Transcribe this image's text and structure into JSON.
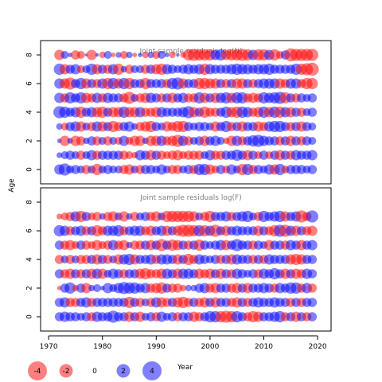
{
  "chart_data": [
    {
      "type": "bubble",
      "title": "Joint sample residuals log(N)",
      "ylabel": "Age",
      "xlim": [
        1968.5,
        2022.5
      ],
      "ylim": [
        -1,
        9
      ],
      "x": [
        1972,
        1973,
        1974,
        1975,
        1976,
        1977,
        1978,
        1979,
        1980,
        1981,
        1982,
        1983,
        1984,
        1985,
        1986,
        1987,
        1988,
        1989,
        1990,
        1991,
        1992,
        1993,
        1994,
        1995,
        1996,
        1997,
        1998,
        1999,
        2000,
        2001,
        2002,
        2003,
        2004,
        2005,
        2006,
        2007,
        2008,
        2009,
        2010,
        2011,
        2012,
        2013,
        2014,
        2015,
        2016,
        2017,
        2018,
        2019
      ],
      "y_ticks": [
        0,
        2,
        4,
        6,
        8
      ],
      "residuals_by_age": {
        "8": [
          -2.5,
          1.5,
          0.5,
          -2,
          -1.5,
          0.2,
          -2.5,
          0.3,
          -1,
          1.5,
          -0.5,
          0.8,
          -1.5,
          1,
          -0.5,
          0.5,
          -1,
          1,
          -1.5,
          1.5,
          0.5,
          -1,
          0.3,
          -0.8,
          -3,
          -3.5,
          -3,
          -3,
          -3,
          2.5,
          3,
          -2.5,
          -3,
          -3,
          -3.5,
          -3,
          2.5,
          -3,
          -3,
          2.5,
          -3,
          -1.5,
          2,
          -4,
          -3.5,
          -3.5,
          -3.5,
          -3.5
        ],
        "7": [
          3,
          -2.5,
          2,
          2.5,
          -1.5,
          1.5,
          3,
          -2.5,
          2,
          -2,
          2.5,
          -3,
          1,
          -2,
          1.5,
          1.5,
          -2,
          2,
          -2.5,
          -3,
          2.5,
          2,
          1.5,
          2,
          2.5,
          2,
          2.5,
          -3,
          2.5,
          2,
          2,
          2,
          2.5,
          3,
          2.5,
          2.5,
          2,
          2.5,
          2.5,
          3,
          2,
          2,
          2,
          2,
          3,
          -3,
          -3.5,
          -4
        ],
        "6": [
          2.5,
          -2.5,
          -3.5,
          2,
          3,
          -2.5,
          2,
          -2,
          2.5,
          -3,
          3,
          -2.5,
          3,
          -3,
          2,
          2,
          -3,
          2,
          2,
          2,
          -2,
          3,
          3.5,
          -2.5,
          2,
          2,
          -3,
          -3,
          -2.5,
          -2.5,
          2,
          -2,
          2,
          -2.5,
          -2.5,
          2,
          -2,
          2,
          2.5,
          2.5,
          2.5,
          -2.5,
          -2,
          2.5,
          2.5,
          -2,
          -3,
          -3
        ],
        "5": [
          2.5,
          -2,
          3,
          2,
          3,
          -2.5,
          -2,
          2.5,
          -2,
          2.5,
          2,
          2,
          -2,
          -3.5,
          1.5,
          -2,
          -2.5,
          2.5,
          2,
          -2,
          2,
          -2.5,
          2,
          2.5,
          -2,
          -2,
          3,
          -2.5,
          2,
          -2.5,
          2.5,
          3,
          -2.5,
          3,
          3,
          -2,
          -2.5,
          -2,
          3,
          2.5,
          3,
          3.5,
          -3,
          2,
          -2,
          2,
          1.5,
          2
        ],
        "4": [
          3.5,
          3,
          2,
          2.5,
          -3,
          2,
          2.5,
          -2.5,
          -3,
          2,
          -2.5,
          -2.5,
          3,
          -2.5,
          -2.5,
          2.5,
          -2,
          -2,
          -2.5,
          2.5,
          2,
          2,
          2,
          2.5,
          3.5,
          -2.5,
          2,
          -3,
          -2,
          -2,
          2,
          3,
          -2.5,
          -3,
          3,
          2.5,
          -2,
          -2.5,
          3,
          -2.5,
          3,
          -3,
          2.5,
          -2.5,
          2,
          -2,
          1.5,
          2
        ],
        "3": [
          1,
          -1.5,
          2,
          2.5,
          -2.5,
          1.5,
          -2,
          2.5,
          -2.5,
          2,
          -3,
          -2,
          2,
          2.5,
          1,
          -2,
          -2.5,
          -3,
          2,
          1.5,
          -2.5,
          -2,
          -3,
          -3,
          2,
          1.5,
          2,
          2,
          1.5,
          -2.5,
          2,
          3,
          -2,
          2,
          -2.5,
          2,
          2,
          -2.5,
          -2,
          2.5,
          3,
          3,
          2,
          -2,
          2,
          -2.5,
          2,
          1.5
        ],
        "2": [
          0.5,
          -2.5,
          0.8,
          -2.5,
          -2,
          1,
          2,
          -2,
          1.5,
          -2,
          1.5,
          -1.5,
          2.5,
          -1.5,
          -2.5,
          -2.5,
          1,
          -2.5,
          -2.5,
          2.5,
          -2,
          -2.5,
          -3.5,
          2.5,
          -2,
          1.5,
          2,
          -2.5,
          2,
          2.5,
          1.5,
          -1,
          -2.5,
          2.5,
          -2,
          2,
          3,
          3.5,
          2.5,
          2,
          2,
          -2,
          2,
          -2.5,
          2,
          -2,
          2,
          1.5
        ],
        "1": [
          0.8,
          1.5,
          2,
          1.5,
          -2,
          1.5,
          2.5,
          -2,
          2,
          2,
          2,
          2,
          -2,
          -1.5,
          -1,
          2.5,
          2,
          -2.5,
          2,
          -2,
          -1.5,
          -2,
          -2.5,
          -1.5,
          -2,
          -2,
          -2,
          1.5,
          2.5,
          -2,
          -2,
          2,
          2,
          3,
          2,
          -2.5,
          2,
          -1.5,
          2,
          -1.5,
          2,
          -2.5,
          2,
          -2,
          2.5,
          2,
          2,
          2.5
        ],
        "0": [
          2.5,
          3.5,
          1.5,
          2,
          1.5,
          -2,
          1.5,
          -3,
          1.5,
          2,
          1.5,
          1.5,
          -2,
          -2.5,
          1.5,
          -2,
          2,
          2,
          1.5,
          2.5,
          1.5,
          -2,
          -2,
          1.5,
          2,
          -2,
          3,
          3,
          -2.5,
          -1.5,
          2,
          -1.5,
          2.5,
          1.5,
          -3,
          3,
          -2,
          2,
          1.5,
          2.5,
          -2.5,
          3,
          -1.5,
          2,
          2,
          2,
          1.5,
          2
        ]
      }
    },
    {
      "type": "bubble",
      "title": "Joint sample residuals log(F)",
      "xlabel": "Year",
      "xlim": [
        1968.5,
        2022.5
      ],
      "ylim": [
        -1,
        9
      ],
      "x": [
        1972,
        1973,
        1974,
        1975,
        1976,
        1977,
        1978,
        1979,
        1980,
        1981,
        1982,
        1983,
        1984,
        1985,
        1986,
        1987,
        1988,
        1989,
        1990,
        1991,
        1992,
        1993,
        1994,
        1995,
        1996,
        1997,
        1998,
        1999,
        2000,
        2001,
        2002,
        2003,
        2004,
        2005,
        2006,
        2007,
        2008,
        2009,
        2010,
        2011,
        2012,
        2013,
        2014,
        2015,
        2016,
        2017,
        2018,
        2019
      ],
      "x_ticks": [
        1970,
        1980,
        1990,
        2000,
        2010,
        2020
      ],
      "y_ticks": [
        0,
        2,
        4,
        6,
        8
      ],
      "residuals_by_age": {
        "7": [
          -0.8,
          -1.5,
          -2,
          2.5,
          -3,
          2,
          -1.5,
          -2,
          1,
          -2,
          -2.5,
          1.5,
          -2.5,
          1,
          -2,
          1.5,
          2,
          -2,
          -2.5,
          1.5,
          -3,
          -3,
          -3,
          -3,
          -3,
          -2.5,
          1.5,
          -2,
          -3,
          2,
          2,
          2.5,
          -2,
          2,
          2.5,
          3,
          1.5,
          -2,
          3,
          2,
          2.5,
          3,
          -2.5,
          2,
          2.5,
          -3.5,
          -2,
          3.5
        ],
        "6": [
          3,
          2.5,
          -2,
          2,
          2.5,
          -2,
          2,
          -3,
          -2,
          2.5,
          2.5,
          3,
          -2,
          2,
          2.5,
          2.5,
          -2,
          -2.5,
          2,
          2.5,
          -2.5,
          2,
          -2.5,
          -3.5,
          -3.5,
          -3,
          3,
          -3,
          2.5,
          -3.5,
          2,
          -2.5,
          2,
          2.5,
          2,
          2,
          2,
          -2.5,
          2,
          -2,
          -3,
          3.5,
          -3.5,
          2.5,
          -2.5,
          2,
          -2,
          -2.5
        ],
        "5": [
          2,
          -2,
          -2.5,
          -1.5,
          2,
          -2,
          -1.5,
          -2.5,
          -1.5,
          -2,
          2.5,
          -2,
          -2.5,
          1,
          -2,
          -2,
          2,
          -2.5,
          2,
          -3.5,
          2,
          -3,
          -2.5,
          2,
          -2,
          2,
          -3,
          2,
          1.5,
          2,
          2.5,
          -2.5,
          2,
          3.5,
          2,
          2,
          -2,
          2,
          1.5,
          -2.5,
          2,
          2,
          -2,
          2.5,
          2,
          -2.5,
          2,
          2.5
        ],
        "4": [
          -2,
          1.5,
          -2,
          1.5,
          -2,
          -2,
          2,
          -2.5,
          2,
          -2,
          1.5,
          -2.5,
          2.5,
          3,
          -2.5,
          2,
          2,
          2.5,
          -2,
          2.5,
          2.5,
          2,
          -2.5,
          2,
          -3,
          -2,
          2.5,
          2,
          1.5,
          2,
          -2,
          2,
          -2.5,
          2.5,
          2,
          2,
          -2,
          2,
          -2,
          2.5,
          2,
          2,
          2,
          -2.5,
          -3,
          -2.5,
          2,
          2
        ],
        "3": [
          2,
          -2,
          -2.5,
          2,
          -2,
          2,
          -2.5,
          2.5,
          -2.5,
          1.5,
          2.5,
          2,
          -2,
          2,
          2,
          -2.5,
          -3,
          -2,
          -2,
          -2.5,
          2.5,
          2,
          -2.5,
          2.5,
          2.5,
          2,
          -2.5,
          -2,
          -2.5,
          2,
          -2.5,
          2,
          -2,
          2.5,
          2,
          1.5,
          2,
          -2,
          2.5,
          2,
          3,
          2,
          -2.5,
          2,
          -2.5,
          -2,
          2.5,
          2
        ],
        "2": [
          -0.5,
          2,
          3,
          -1,
          2,
          -2.5,
          1,
          1.5,
          0.5,
          2.5,
          1.5,
          2.5,
          3.5,
          3,
          3,
          2,
          2.5,
          -2,
          -2.5,
          -3,
          2,
          -2,
          -2,
          -1,
          1,
          1,
          2,
          2.5,
          -2,
          -2.5,
          2,
          2,
          -2,
          -2.5,
          2,
          -2.5,
          2,
          2,
          2.5,
          2,
          -2,
          2.5,
          2,
          3,
          3,
          -2,
          2.5,
          -2
        ],
        "1": [
          2,
          2.5,
          -2,
          -2,
          2,
          2.5,
          -2,
          2,
          2,
          2,
          2,
          2,
          2,
          -3,
          2,
          -2,
          1.5,
          -2,
          2.5,
          -2.5,
          -2,
          2,
          -2.5,
          -3,
          -2,
          2,
          -2,
          -2.5,
          2,
          -2.5,
          2,
          2,
          -2,
          -2.5,
          2,
          -2,
          2,
          2.5,
          2,
          2,
          2.5,
          2,
          2,
          -2,
          2,
          -2,
          2,
          2
        ],
        "0": [
          2,
          2.5,
          2,
          2,
          1.5,
          2,
          -2,
          2.5,
          2,
          2,
          3.5,
          2,
          2,
          -2.5,
          2,
          -2.5,
          1.5,
          2,
          -2,
          2.5,
          1.5,
          2,
          -2,
          2,
          2,
          -2.5,
          -2,
          2,
          3,
          3,
          -3,
          -3.5,
          -3,
          3,
          2,
          -2,
          -3,
          -2.5,
          2,
          2,
          2.5,
          3,
          -2,
          2,
          -2.5,
          2,
          -2,
          2
        ]
      }
    }
  ],
  "legend": {
    "items": [
      {
        "label": "-4",
        "value": -4
      },
      {
        "label": "-2",
        "value": -2
      },
      {
        "label": "0",
        "value": 0
      },
      {
        "label": "2",
        "value": 2
      },
      {
        "label": "4",
        "value": 4
      }
    ]
  },
  "colors": {
    "negative": "#ff0000",
    "positive": "#0000ff",
    "title_text": "#808080"
  },
  "fill_opacity": 0.5
}
